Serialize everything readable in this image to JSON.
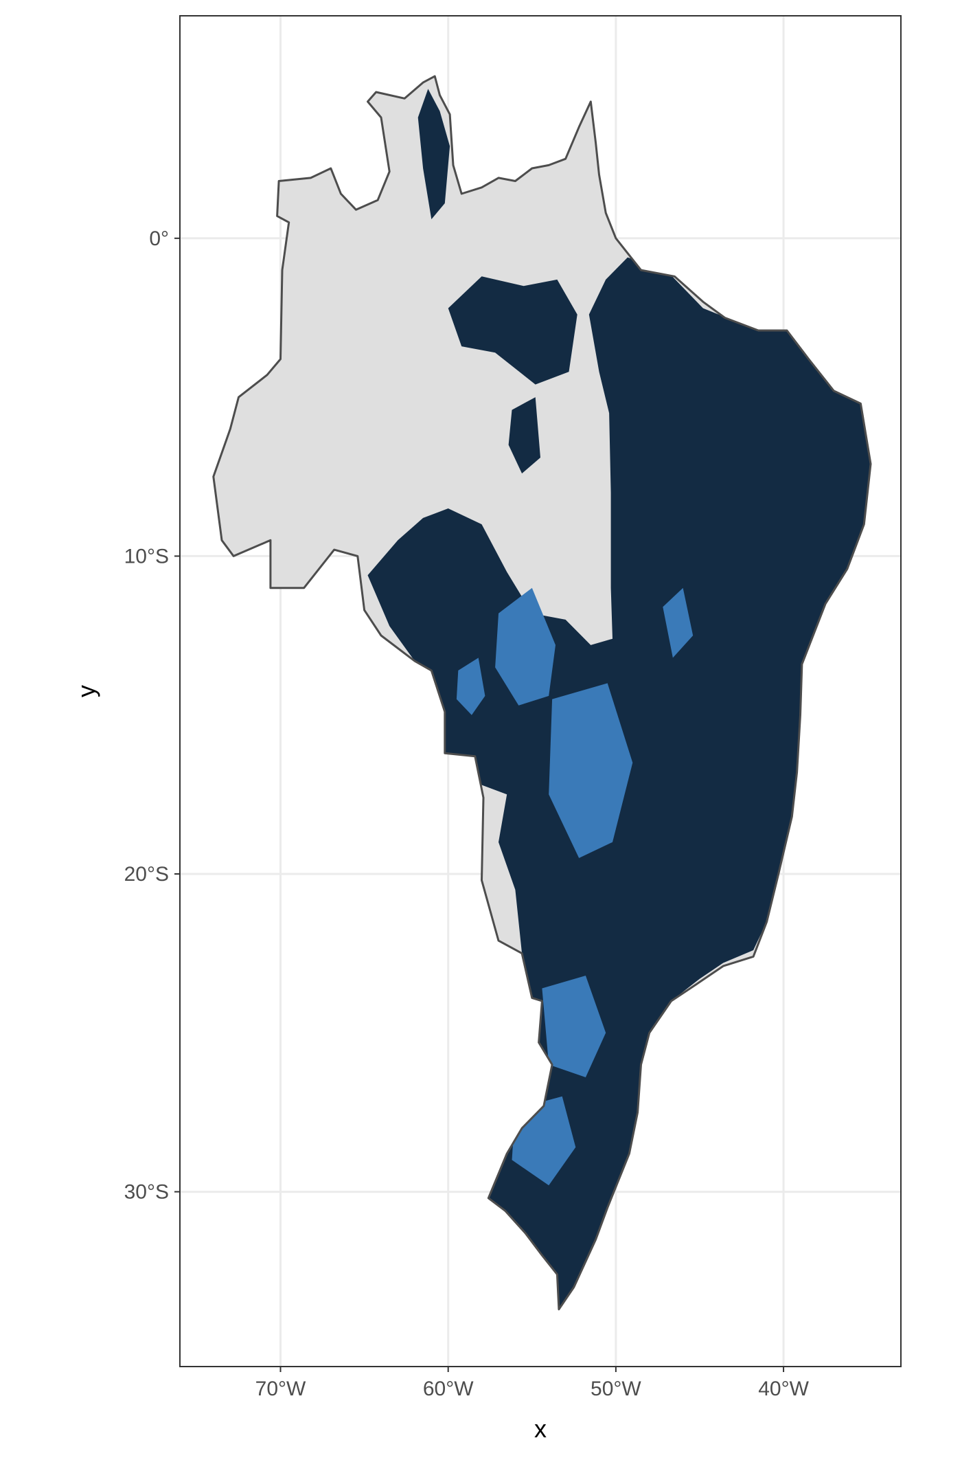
{
  "chart_data": {
    "type": "heatmap",
    "title": "",
    "xlabel": "x",
    "ylabel": "y",
    "xlim": [
      -76,
      -33
    ],
    "ylim": [
      -35.5,
      7
    ],
    "grid": true,
    "x_ticks": [
      {
        "value": -70,
        "label": "70°W"
      },
      {
        "value": -60,
        "label": "60°W"
      },
      {
        "value": -50,
        "label": "50°W"
      },
      {
        "value": -40,
        "label": "40°W"
      }
    ],
    "y_ticks": [
      {
        "value": 0,
        "label": "0°"
      },
      {
        "value": -10,
        "label": "10°S"
      },
      {
        "value": -20,
        "label": "20°S"
      },
      {
        "value": -30,
        "label": "30°S"
      }
    ],
    "outline": [
      [
        -70.1,
        1.8
      ],
      [
        -68.2,
        1.9
      ],
      [
        -67.0,
        2.2
      ],
      [
        -66.4,
        1.4
      ],
      [
        -65.5,
        0.9
      ],
      [
        -64.2,
        1.2
      ],
      [
        -63.5,
        2.1
      ],
      [
        -64.0,
        3.8
      ],
      [
        -64.8,
        4.3
      ],
      [
        -64.3,
        4.6
      ],
      [
        -62.6,
        4.4
      ],
      [
        -61.5,
        4.9
      ],
      [
        -60.8,
        5.1
      ],
      [
        -60.5,
        4.5
      ],
      [
        -59.9,
        3.9
      ],
      [
        -59.7,
        2.3
      ],
      [
        -59.2,
        1.4
      ],
      [
        -58.0,
        1.6
      ],
      [
        -57.0,
        1.9
      ],
      [
        -56.0,
        1.8
      ],
      [
        -55.0,
        2.2
      ],
      [
        -54.0,
        2.3
      ],
      [
        -53.0,
        2.5
      ],
      [
        -52.2,
        3.5
      ],
      [
        -51.5,
        4.3
      ],
      [
        -51.2,
        3.0
      ],
      [
        -51.0,
        2.0
      ],
      [
        -50.6,
        0.8
      ],
      [
        -50.0,
        0.0
      ],
      [
        -48.5,
        -1.0
      ],
      [
        -46.5,
        -1.2
      ],
      [
        -44.8,
        -2.0
      ],
      [
        -43.5,
        -2.5
      ],
      [
        -41.5,
        -2.9
      ],
      [
        -39.8,
        -2.9
      ],
      [
        -38.5,
        -3.8
      ],
      [
        -37.0,
        -4.8
      ],
      [
        -35.4,
        -5.2
      ],
      [
        -34.8,
        -7.1
      ],
      [
        -35.2,
        -9.0
      ],
      [
        -36.2,
        -10.4
      ],
      [
        -37.5,
        -11.5
      ],
      [
        -38.9,
        -13.4
      ],
      [
        -39.0,
        -15.0
      ],
      [
        -39.2,
        -16.8
      ],
      [
        -39.5,
        -18.2
      ],
      [
        -40.3,
        -20.0
      ],
      [
        -41.0,
        -21.5
      ],
      [
        -41.8,
        -22.6
      ],
      [
        -43.6,
        -22.9
      ],
      [
        -45.0,
        -23.4
      ],
      [
        -46.7,
        -24.0
      ],
      [
        -48.0,
        -25.0
      ],
      [
        -48.5,
        -26.0
      ],
      [
        -48.7,
        -27.5
      ],
      [
        -49.2,
        -28.8
      ],
      [
        -50.5,
        -30.5
      ],
      [
        -51.2,
        -31.5
      ],
      [
        -52.5,
        -33.0
      ],
      [
        -53.4,
        -33.7
      ],
      [
        -53.5,
        -32.6
      ],
      [
        -54.4,
        -32.0
      ],
      [
        -55.4,
        -31.3
      ],
      [
        -56.6,
        -30.6
      ],
      [
        -57.6,
        -30.2
      ],
      [
        -56.5,
        -28.8
      ],
      [
        -55.6,
        -28.0
      ],
      [
        -54.3,
        -27.3
      ],
      [
        -53.8,
        -26.0
      ],
      [
        -54.6,
        -25.3
      ],
      [
        -54.4,
        -24.0
      ],
      [
        -55.0,
        -23.9
      ],
      [
        -55.6,
        -22.5
      ],
      [
        -57.0,
        -22.1
      ],
      [
        -58.0,
        -20.2
      ],
      [
        -57.9,
        -17.6
      ],
      [
        -58.4,
        -16.3
      ],
      [
        -60.2,
        -16.2
      ],
      [
        -60.2,
        -14.9
      ],
      [
        -61.0,
        -13.6
      ],
      [
        -62.0,
        -13.3
      ],
      [
        -64.0,
        -12.5
      ],
      [
        -65.0,
        -11.7
      ],
      [
        -65.4,
        -10.0
      ],
      [
        -66.8,
        -9.8
      ],
      [
        -68.6,
        -11.0
      ],
      [
        -70.6,
        -11.0
      ],
      [
        -70.6,
        -9.5
      ],
      [
        -72.8,
        -10.0
      ],
      [
        -73.5,
        -9.5
      ],
      [
        -74.0,
        -7.5
      ],
      [
        -73.0,
        -6.0
      ],
      [
        -72.5,
        -5.0
      ],
      [
        -70.8,
        -4.3
      ],
      [
        -70.0,
        -3.8
      ],
      [
        -69.9,
        -1.0
      ],
      [
        -69.5,
        0.5
      ],
      [
        -70.2,
        0.7
      ],
      [
        -70.1,
        1.8
      ]
    ],
    "regions": [
      {
        "value": "high",
        "points": [
          [
            -49.3,
            -0.6
          ],
          [
            -47.0,
            -1.0
          ],
          [
            -44.8,
            -2.2
          ],
          [
            -41.5,
            -2.9
          ],
          [
            -39.8,
            -2.9
          ],
          [
            -38.5,
            -3.8
          ],
          [
            -37.0,
            -4.8
          ],
          [
            -35.4,
            -5.2
          ],
          [
            -34.8,
            -7.1
          ],
          [
            -35.2,
            -9.0
          ],
          [
            -36.2,
            -10.4
          ],
          [
            -37.5,
            -11.5
          ],
          [
            -38.9,
            -13.4
          ],
          [
            -39.0,
            -15.0
          ],
          [
            -39.2,
            -16.8
          ],
          [
            -39.5,
            -18.2
          ],
          [
            -40.3,
            -20.0
          ],
          [
            -41.0,
            -21.5
          ],
          [
            -41.8,
            -22.4
          ],
          [
            -43.6,
            -22.8
          ],
          [
            -45.0,
            -23.3
          ],
          [
            -46.7,
            -24.0
          ],
          [
            -48.0,
            -25.0
          ],
          [
            -48.5,
            -26.0
          ],
          [
            -48.7,
            -27.5
          ],
          [
            -49.2,
            -28.8
          ],
          [
            -50.5,
            -30.5
          ],
          [
            -51.2,
            -31.5
          ],
          [
            -52.5,
            -33.0
          ],
          [
            -53.4,
            -33.7
          ],
          [
            -53.5,
            -32.6
          ],
          [
            -54.4,
            -32.0
          ],
          [
            -55.4,
            -31.3
          ],
          [
            -56.6,
            -30.6
          ],
          [
            -57.6,
            -30.2
          ],
          [
            -56.5,
            -28.8
          ],
          [
            -55.6,
            -28.0
          ],
          [
            -54.3,
            -27.3
          ],
          [
            -53.8,
            -26.0
          ],
          [
            -54.6,
            -25.3
          ],
          [
            -54.4,
            -24.0
          ],
          [
            -55.0,
            -23.9
          ],
          [
            -55.6,
            -22.5
          ],
          [
            -56.0,
            -20.5
          ],
          [
            -57.0,
            -19.0
          ],
          [
            -56.5,
            -17.5
          ],
          [
            -58.0,
            -17.2
          ],
          [
            -58.4,
            -16.3
          ],
          [
            -60.2,
            -16.2
          ],
          [
            -60.2,
            -14.9
          ],
          [
            -61.0,
            -13.6
          ],
          [
            -62.0,
            -13.3
          ],
          [
            -63.5,
            -12.2
          ],
          [
            -64.8,
            -10.6
          ],
          [
            -63.0,
            -9.5
          ],
          [
            -61.5,
            -8.8
          ],
          [
            -60.0,
            -8.5
          ],
          [
            -58.0,
            -9.0
          ],
          [
            -56.5,
            -10.5
          ],
          [
            -55.0,
            -11.8
          ],
          [
            -53.0,
            -12.0
          ],
          [
            -51.5,
            -12.8
          ],
          [
            -50.2,
            -12.6
          ],
          [
            -50.3,
            -11.0
          ],
          [
            -50.3,
            -8.0
          ],
          [
            -50.4,
            -5.5
          ],
          [
            -51.0,
            -4.2
          ],
          [
            -51.6,
            -2.4
          ],
          [
            -50.6,
            -1.3
          ]
        ]
      },
      {
        "value": "high",
        "points": [
          [
            -60.0,
            -2.2
          ],
          [
            -58.0,
            -1.2
          ],
          [
            -55.5,
            -1.5
          ],
          [
            -53.5,
            -1.3
          ],
          [
            -52.3,
            -2.4
          ],
          [
            -52.8,
            -4.2
          ],
          [
            -54.8,
            -4.6
          ],
          [
            -57.2,
            -3.6
          ],
          [
            -59.2,
            -3.4
          ]
        ]
      },
      {
        "value": "high",
        "points": [
          [
            -61.2,
            4.7
          ],
          [
            -60.5,
            4.0
          ],
          [
            -59.9,
            2.9
          ],
          [
            -60.2,
            1.1
          ],
          [
            -61.0,
            0.6
          ],
          [
            -61.5,
            2.2
          ],
          [
            -61.8,
            3.8
          ]
        ]
      },
      {
        "value": "high",
        "points": [
          [
            -56.2,
            -5.4
          ],
          [
            -54.8,
            -5.0
          ],
          [
            -54.5,
            -6.9
          ],
          [
            -55.6,
            -7.4
          ],
          [
            -56.4,
            -6.5
          ]
        ]
      },
      {
        "value": "peak",
        "points": [
          [
            -57.0,
            -11.8
          ],
          [
            -55.0,
            -11.0
          ],
          [
            -53.6,
            -12.8
          ],
          [
            -54.0,
            -14.4
          ],
          [
            -55.8,
            -14.7
          ],
          [
            -57.2,
            -13.5
          ]
        ]
      },
      {
        "value": "peak",
        "points": [
          [
            -59.4,
            -13.6
          ],
          [
            -58.2,
            -13.2
          ],
          [
            -57.8,
            -14.4
          ],
          [
            -58.6,
            -15.0
          ],
          [
            -59.5,
            -14.5
          ]
        ]
      },
      {
        "value": "peak",
        "points": [
          [
            -53.8,
            -14.5
          ],
          [
            -50.5,
            -14.0
          ],
          [
            -49.0,
            -16.5
          ],
          [
            -50.2,
            -19.0
          ],
          [
            -52.2,
            -19.5
          ],
          [
            -54.0,
            -17.5
          ]
        ]
      },
      {
        "value": "peak",
        "points": [
          [
            -54.4,
            -23.6
          ],
          [
            -51.8,
            -23.2
          ],
          [
            -50.6,
            -25.0
          ],
          [
            -51.8,
            -26.4
          ],
          [
            -54.0,
            -26.0
          ]
        ]
      },
      {
        "value": "peak",
        "points": [
          [
            -56.0,
            -27.4
          ],
          [
            -53.2,
            -27.0
          ],
          [
            -52.4,
            -28.6
          ],
          [
            -54.0,
            -29.8
          ],
          [
            -56.2,
            -29.0
          ]
        ]
      },
      {
        "value": "peak",
        "points": [
          [
            -47.2,
            -11.6
          ],
          [
            -46.0,
            -11.0
          ],
          [
            -45.4,
            -12.5
          ],
          [
            -46.6,
            -13.2
          ]
        ]
      }
    ],
    "colors": {
      "outline": "#4d4d4d",
      "low": "#dfdfdf",
      "high": "#132b43",
      "peak": "#3a7ab8",
      "panel_border": "#333333",
      "grid": "#ebebeb"
    }
  }
}
